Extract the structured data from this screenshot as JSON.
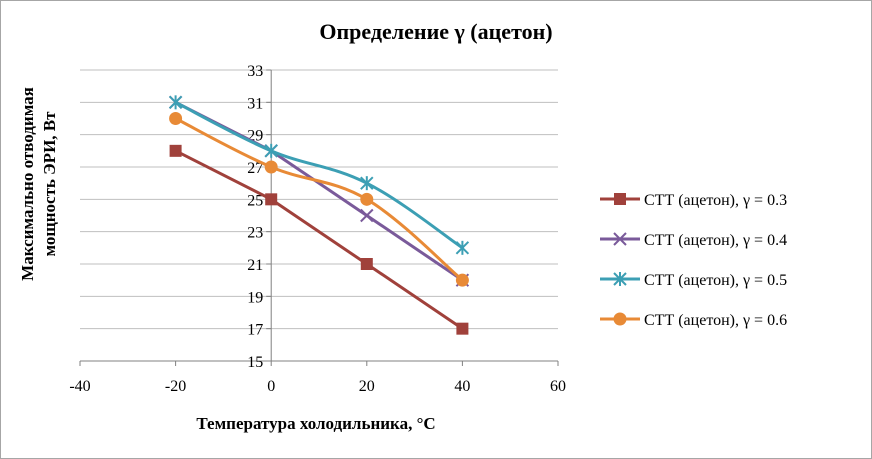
{
  "chart_data": {
    "type": "line",
    "title": "Определение  γ (ацетон)",
    "xlabel": "Температура холодильника, °C",
    "ylabel": "Максимально отводимая мощность ЭРИ, Вт",
    "xlim": [
      -40,
      60
    ],
    "ylim": [
      15,
      33
    ],
    "x_ticks": [
      -40,
      -20,
      0,
      20,
      40,
      60
    ],
    "y_ticks": [
      15,
      17,
      19,
      21,
      23,
      25,
      27,
      29,
      31,
      33
    ],
    "grid": "horizontal",
    "legend_position": "right",
    "series": [
      {
        "name": "СТТ (ацетон), γ = 0.3",
        "color": "#a0413b",
        "marker": "square",
        "x": [
          -20,
          0,
          20,
          40
        ],
        "y": [
          28,
          25,
          21,
          17
        ]
      },
      {
        "name": "СТТ (ацетон), γ = 0.4",
        "color": "#7a5a9a",
        "marker": "x",
        "x": [
          -20,
          0,
          20,
          40
        ],
        "y": [
          31,
          28,
          24,
          20
        ]
      },
      {
        "name": "СТТ (ацетон), γ = 0.5",
        "color": "#3c9fb4",
        "marker": "asterisk",
        "x": [
          -20,
          0,
          20,
          40
        ],
        "y": [
          31,
          28,
          26,
          22
        ]
      },
      {
        "name": "СТТ (ацетон), γ = 0.6",
        "color": "#e88a36",
        "marker": "circle",
        "x": [
          -20,
          0,
          20,
          40
        ],
        "y": [
          30,
          27,
          25,
          20
        ]
      }
    ]
  }
}
